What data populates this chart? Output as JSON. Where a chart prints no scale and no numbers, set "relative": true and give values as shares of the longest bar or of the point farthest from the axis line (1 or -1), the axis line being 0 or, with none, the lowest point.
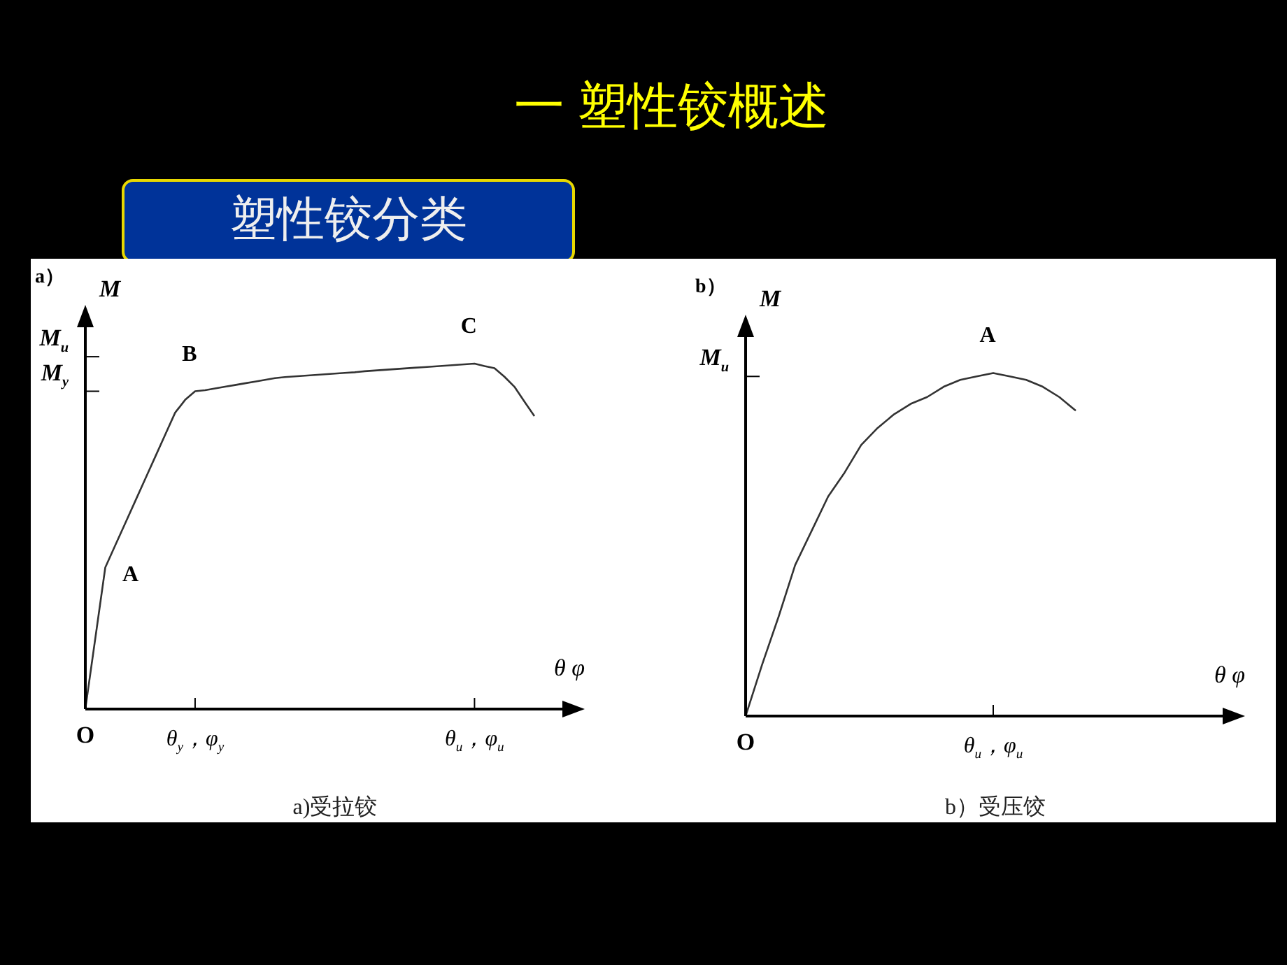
{
  "chart_data": [
    {
      "type": "other",
      "title": "一 塑性铰概述",
      "subtitle": "塑性铰分类"
    },
    {
      "type": "line",
      "title": "a）",
      "xlabel": "θ φ",
      "ylabel": "M",
      "relative": true,
      "legend": false,
      "marker": "none",
      "line_style": "solid",
      "categories": [
        "O",
        null,
        null,
        null,
        null,
        null,
        null,
        null,
        null,
        null,
        null,
        "θ$_{y}$，φ$_{y}$",
        null,
        null,
        null,
        null,
        null,
        null,
        null,
        null,
        null,
        null,
        null,
        null,
        null,
        null,
        null,
        null,
        null,
        null,
        null,
        null,
        null,
        null,
        null,
        null,
        null,
        null,
        null,
        "θ$_{u}$，φ$_{u}$",
        null,
        null,
        null,
        null,
        null,
        null
      ],
      "series": [
        {
          "color": "#333333",
          "values": [
            0,
            0.205,
            0.41,
            0.474,
            0.538,
            0.602,
            0.666,
            0.73,
            0.794,
            0.858,
            0.895,
            0.92,
            0.923,
            0.928,
            0.933,
            0.938,
            0.943,
            0.948,
            0.953,
            0.958,
            0.961,
            0.963,
            0.965,
            0.967,
            0.969,
            0.971,
            0.973,
            0.975,
            0.978,
            0.98,
            0.982,
            0.984,
            0.986,
            0.988,
            0.99,
            0.992,
            0.994,
            0.996,
            0.998,
            1,
            0.993,
            0.987,
            0.962,
            0.933,
            0.89,
            0.848
          ]
        }
      ],
      "ref_lines": [
        {
          "axis": "y",
          "value": 1.02,
          "label": "M$_{u}$"
        },
        {
          "axis": "y",
          "value": 0.92,
          "label": "M$_{y}$"
        }
      ],
      "annotations": [
        "A",
        {
          "text": "B",
          "x": "θ$_{y}$，φ$_{y}$",
          "y": 0.92
        },
        {
          "text": "C",
          "x": "θ$_{u}$，φ$_{u}$",
          "y": 1
        },
        "a)受拉铰"
      ]
    },
    {
      "type": "line",
      "title": "b）",
      "xlabel": "θ φ",
      "ylabel": "M",
      "relative": true,
      "legend": false,
      "marker": "none",
      "line_style": "solid",
      "categories": [
        "O",
        null,
        null,
        null,
        null,
        null,
        null,
        null,
        null,
        null,
        null,
        null,
        null,
        null,
        null,
        "θ$_{u}$，φ$_{u}$",
        null,
        null,
        null,
        null,
        null
      ],
      "series": [
        {
          "color": "#333333",
          "values": [
            0,
            0.15,
            0.29,
            0.44,
            0.54,
            0.64,
            0.71,
            0.79,
            0.84,
            0.88,
            0.91,
            0.93,
            0.96,
            0.98,
            0.99,
            1,
            0.99,
            0.98,
            0.96,
            0.93,
            0.89
          ]
        }
      ],
      "ref_lines": [
        {
          "axis": "y",
          "value": 0.99,
          "label": "M$_{u}$"
        }
      ],
      "annotations": [
        {
          "text": "A",
          "x": "θ$_{u}$，φ$_{u}$",
          "y": 1
        },
        "b）受压饺"
      ]
    }
  ]
}
